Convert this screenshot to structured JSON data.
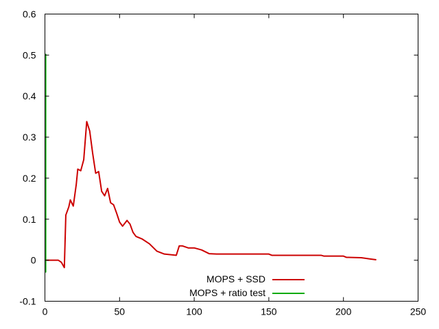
{
  "chart_data": {
    "type": "line",
    "xlim": [
      0,
      250
    ],
    "ylim": [
      -0.1,
      0.6
    ],
    "x_ticks": [
      0,
      50,
      100,
      150,
      200,
      250
    ],
    "y_ticks": [
      -0.1,
      0,
      0.1,
      0.2,
      0.3,
      0.4,
      0.5,
      0.6
    ],
    "x_tick_labels": [
      "0",
      "50",
      "100",
      "150",
      "200",
      "250"
    ],
    "y_tick_labels": [
      "-0.1",
      "0",
      "0.1",
      "0.2",
      "0.3",
      "0.4",
      "0.5",
      "0.6"
    ],
    "grid": false,
    "legend_position": "bottom-center",
    "series": [
      {
        "name": "MOPS + SSD",
        "color": "#cc0000",
        "points": [
          [
            0,
            0
          ],
          [
            9,
            0
          ],
          [
            11,
            -0.005
          ],
          [
            13,
            -0.018
          ],
          [
            14,
            0.11
          ],
          [
            16,
            0.13
          ],
          [
            17,
            0.147
          ],
          [
            19,
            0.132
          ],
          [
            21,
            0.185
          ],
          [
            22,
            0.222
          ],
          [
            24,
            0.218
          ],
          [
            26,
            0.245
          ],
          [
            28,
            0.338
          ],
          [
            30,
            0.315
          ],
          [
            32,
            0.26
          ],
          [
            34,
            0.212
          ],
          [
            36,
            0.216
          ],
          [
            38,
            0.168
          ],
          [
            40,
            0.157
          ],
          [
            42,
            0.175
          ],
          [
            44,
            0.14
          ],
          [
            46,
            0.135
          ],
          [
            48,
            0.115
          ],
          [
            50,
            0.093
          ],
          [
            52,
            0.083
          ],
          [
            55,
            0.097
          ],
          [
            57,
            0.088
          ],
          [
            59,
            0.068
          ],
          [
            61,
            0.058
          ],
          [
            65,
            0.052
          ],
          [
            70,
            0.04
          ],
          [
            75,
            0.022
          ],
          [
            80,
            0.015
          ],
          [
            88,
            0.012
          ],
          [
            90,
            0.035
          ],
          [
            92,
            0.035
          ],
          [
            96,
            0.03
          ],
          [
            100,
            0.03
          ],
          [
            105,
            0.025
          ],
          [
            110,
            0.016
          ],
          [
            115,
            0.015
          ],
          [
            150,
            0.015
          ],
          [
            152,
            0.012
          ],
          [
            185,
            0.012
          ],
          [
            187,
            0.01
          ],
          [
            200,
            0.01
          ],
          [
            202,
            0.007
          ],
          [
            212,
            0.006
          ],
          [
            218,
            0.003
          ],
          [
            222,
            0.001
          ]
        ]
      },
      {
        "name": "MOPS + ratio test",
        "color": "#00aa00",
        "points": [
          [
            0.5,
            0.503
          ],
          [
            0.5,
            -0.03
          ]
        ]
      }
    ]
  }
}
